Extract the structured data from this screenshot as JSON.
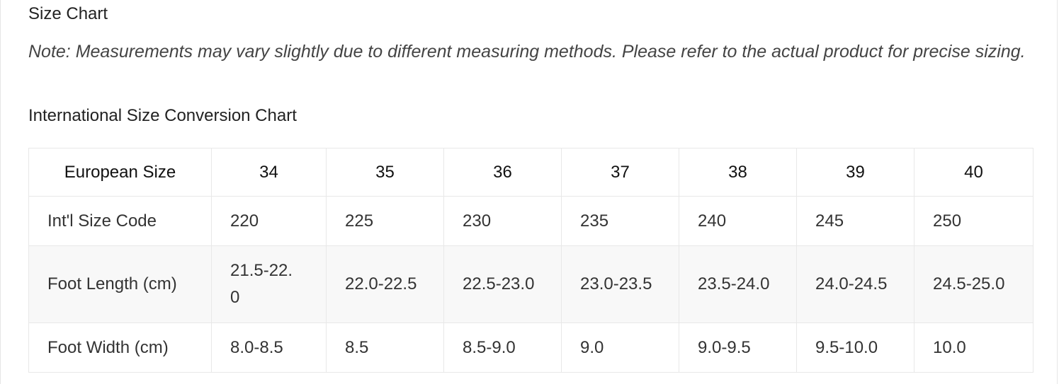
{
  "header": {
    "title": "Size Chart",
    "note": "Note: Measurements may vary slightly due to different measuring methods. Please refer to the actual product for precise sizing."
  },
  "table": {
    "title": "International Size Conversion Chart",
    "columns": [
      "European Size",
      "34",
      "35",
      "36",
      "37",
      "38",
      "39",
      "40"
    ],
    "rows": [
      [
        "Int'l Size Code",
        "220",
        "225",
        "230",
        "235",
        "240",
        "245",
        "250"
      ],
      [
        "Foot Length (cm)",
        "21.5-22.0",
        "22.0-22.5",
        "22.5-23.0",
        "23.0-23.5",
        "23.5-24.0",
        "24.0-24.5",
        "24.5-25.0"
      ],
      [
        "Foot Width (cm)",
        "8.0-8.5",
        "8.5",
        "8.5-9.0",
        "9.0",
        "9.0-9.5",
        "9.5-10.0",
        "10.0"
      ]
    ]
  }
}
